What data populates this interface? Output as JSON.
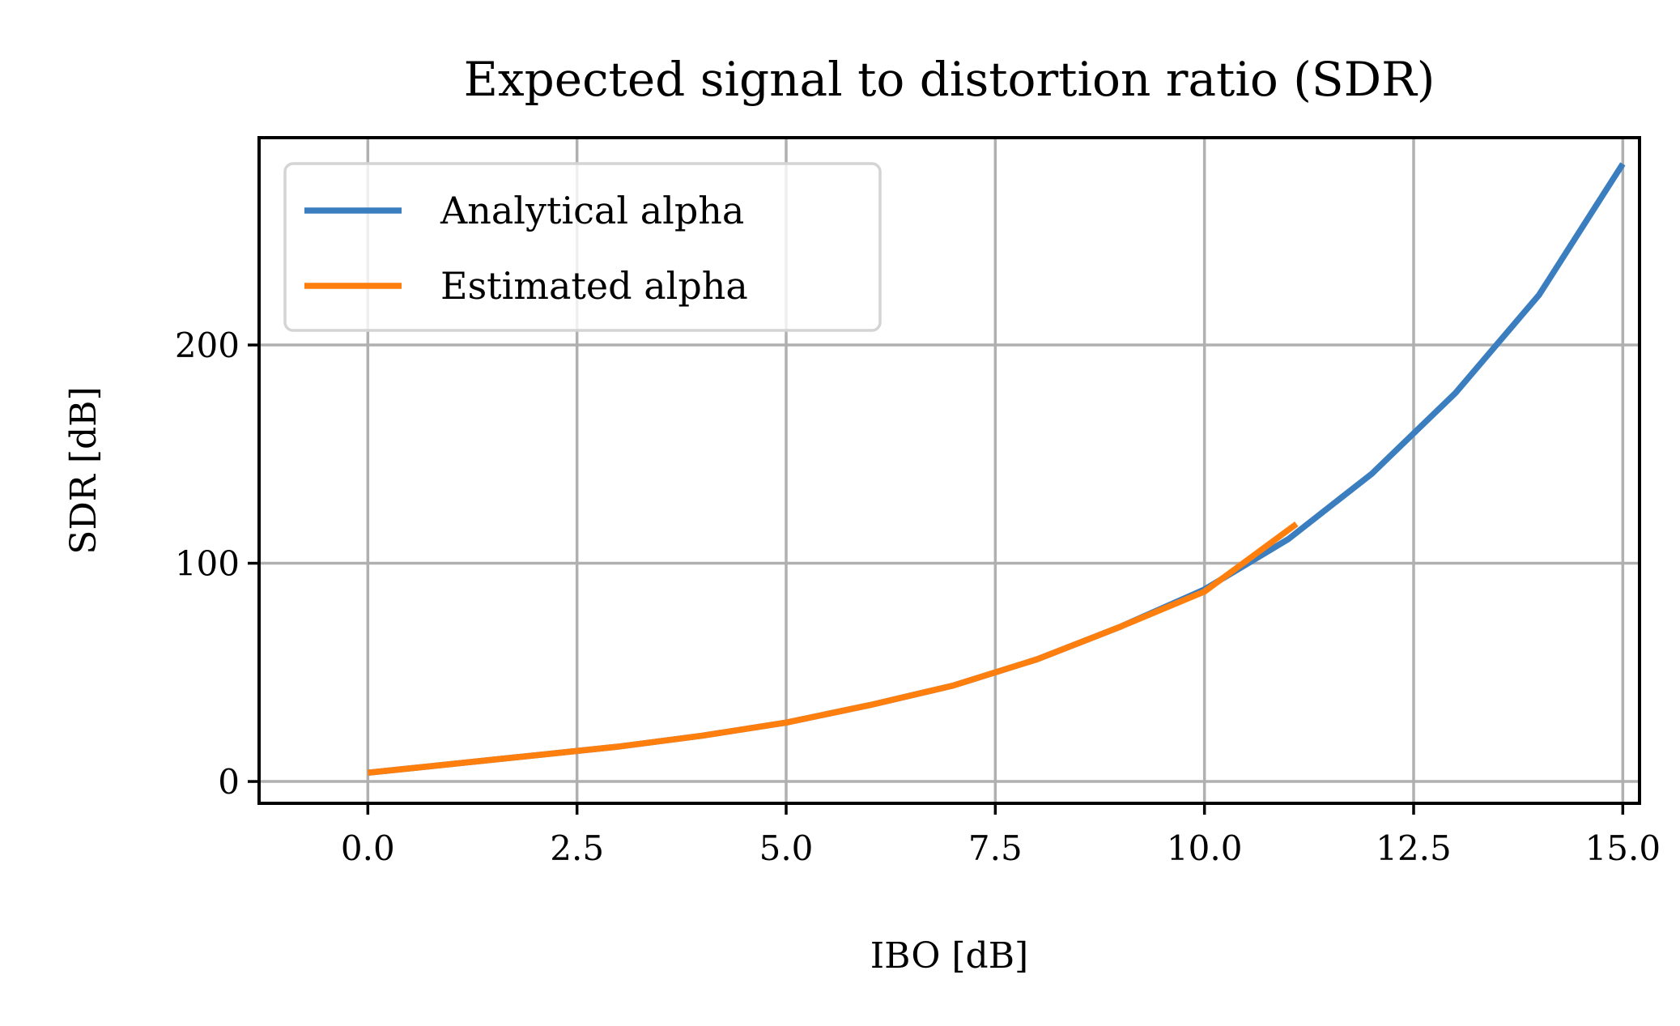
{
  "chart_data": {
    "type": "line",
    "title": "Expected signal to distortion ratio (SDR)",
    "xlabel": "IBO [dB]",
    "ylabel": "SDR [dB]",
    "xlim": [
      -1.3,
      15.2
    ],
    "ylim": [
      -10,
      295
    ],
    "xticks": [
      0.0,
      2.5,
      5.0,
      7.5,
      10.0,
      12.5,
      15.0
    ],
    "xtick_labels": [
      "0.0",
      "2.5",
      "5.0",
      "7.5",
      "10.0",
      "12.5",
      "15.0"
    ],
    "yticks": [
      0,
      100,
      200
    ],
    "ytick_labels": [
      "0",
      "100",
      "200"
    ],
    "grid": true,
    "legend_position": "top-left",
    "series": [
      {
        "name": "Analytical alpha",
        "color": "#3a7ebf",
        "x": [
          0,
          1,
          2,
          3,
          4,
          5,
          6,
          7,
          8,
          9,
          10,
          11,
          12,
          13,
          14,
          15
        ],
        "y": [
          4,
          8,
          12,
          16,
          21,
          27,
          35,
          44,
          56,
          71,
          88,
          111,
          141,
          178,
          223,
          283
        ]
      },
      {
        "name": "Estimated alpha",
        "color": "#ff7f0e",
        "x": [
          0,
          1,
          2,
          3,
          4,
          5,
          6,
          7,
          8,
          9,
          10,
          11.1
        ],
        "y": [
          4,
          8,
          12,
          16,
          21,
          27,
          35,
          44,
          56,
          71,
          87,
          118
        ]
      }
    ]
  }
}
